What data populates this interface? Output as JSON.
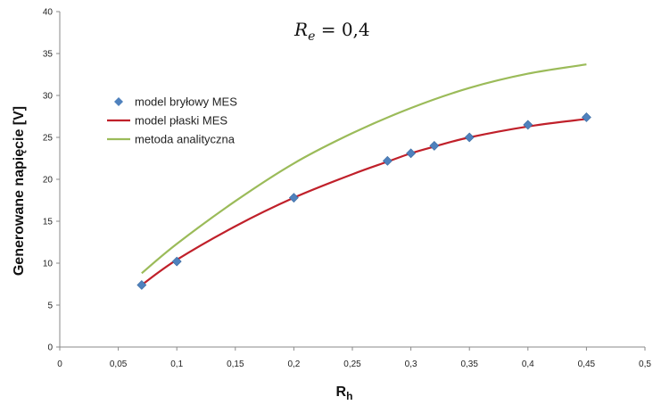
{
  "chart_data": {
    "type": "scatter",
    "title": "",
    "annotation": {
      "main": "R",
      "sub": "e",
      "rest": " = 0,4"
    },
    "xlabel": {
      "main": "R",
      "sub": "h"
    },
    "ylabel": "Generowane napięcie [V]",
    "xlim": [
      0,
      0.5
    ],
    "ylim": [
      0,
      40
    ],
    "x_ticks": [
      0,
      0.05,
      0.1,
      0.15,
      0.2,
      0.25,
      0.3,
      0.35,
      0.4,
      0.45,
      0.5
    ],
    "x_tick_labels": [
      "0",
      "0,05",
      "0,1",
      "0,15",
      "0,2",
      "0,25",
      "0,3",
      "0,35",
      "0,4",
      "0,45",
      "0,5"
    ],
    "y_ticks": [
      0,
      5,
      10,
      15,
      20,
      25,
      30,
      35,
      40
    ],
    "y_tick_labels": [
      "0",
      "5",
      "10",
      "15",
      "20",
      "25",
      "30",
      "35",
      "40"
    ],
    "grid": false,
    "legend_position": "left",
    "series": [
      {
        "name": "model bryłowy MES",
        "kind": "markers",
        "marker": "diamond",
        "color": "#4f81bd",
        "x": [
          0.07,
          0.1,
          0.2,
          0.28,
          0.3,
          0.32,
          0.35,
          0.4,
          0.45
        ],
        "y": [
          7.4,
          10.2,
          17.8,
          22.2,
          23.1,
          24.0,
          25.0,
          26.5,
          27.4
        ]
      },
      {
        "name": "model płaski MES",
        "kind": "line",
        "color": "#c0202a",
        "x": [
          0.07,
          0.1,
          0.15,
          0.2,
          0.25,
          0.28,
          0.3,
          0.32,
          0.35,
          0.4,
          0.45
        ],
        "y": [
          7.4,
          10.4,
          14.4,
          17.8,
          20.6,
          22.1,
          23.1,
          23.9,
          25.0,
          26.3,
          27.2
        ]
      },
      {
        "name": "metoda analityczna",
        "kind": "line",
        "color": "#9bbb59",
        "x": [
          0.07,
          0.1,
          0.15,
          0.2,
          0.25,
          0.3,
          0.35,
          0.4,
          0.45
        ],
        "y": [
          8.8,
          12.3,
          17.4,
          21.9,
          25.5,
          28.5,
          30.9,
          32.6,
          33.7
        ]
      }
    ]
  }
}
